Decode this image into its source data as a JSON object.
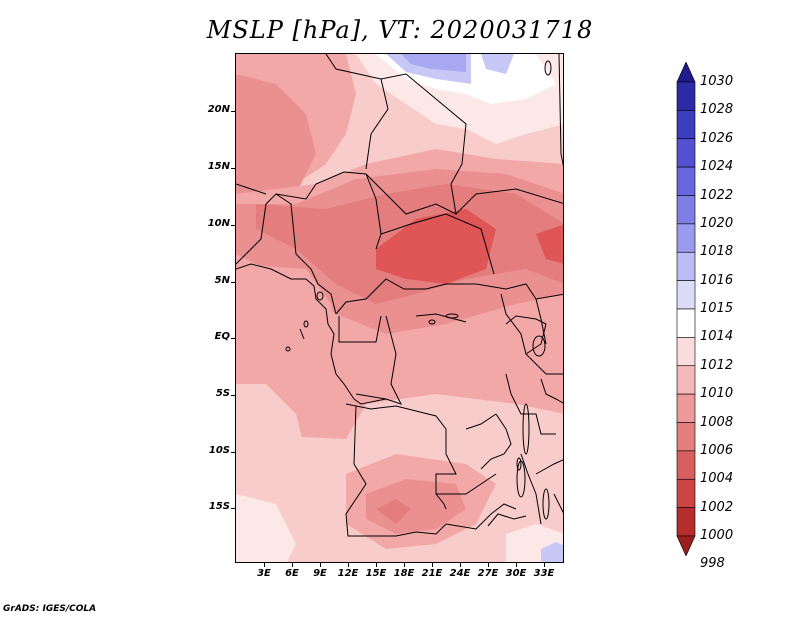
{
  "title": "MSLP [hPa], VT: 2020031718",
  "footer": "GrADS: IGES/COLA",
  "y_axis_labels": [
    "20N",
    "15N",
    "10N",
    "5N",
    "EQ",
    "5S",
    "10S",
    "15S"
  ],
  "x_axis_labels": [
    "3E",
    "6E",
    "9E",
    "12E",
    "15E",
    "18E",
    "21E",
    "24E",
    "27E",
    "30E",
    "33E"
  ],
  "colorbar": {
    "levels": [
      "1030",
      "1028",
      "1026",
      "1024",
      "1022",
      "1020",
      "1018",
      "1016",
      "1015",
      "1014",
      "1012",
      "1010",
      "1008",
      "1006",
      "1004",
      "1002",
      "1000",
      "998"
    ],
    "colors": [
      "#201b8c",
      "#2c2ba6",
      "#3d3dc0",
      "#5151d2",
      "#6666dd",
      "#7e7ee6",
      "#9a9aef",
      "#bcbcf5",
      "#dcdcf9",
      "#ffffff",
      "#fbdcdc",
      "#f5b8b8",
      "#ee9a9a",
      "#e47d7d",
      "#d85f5f",
      "#cc4444",
      "#b52d2d",
      "#9b1e1e"
    ]
  },
  "map_colors": {
    "p1004": "#e05656",
    "p1006": "#e47d7d",
    "p1008": "#eb9090",
    "p1010": "#f3a8a8",
    "p1012": "#f9cccc",
    "p1014": "#fde8e8",
    "p1016": "#ffffff",
    "p1018": "#c8c8f7",
    "p1020": "#a8a8f0",
    "border": "#000000"
  }
}
